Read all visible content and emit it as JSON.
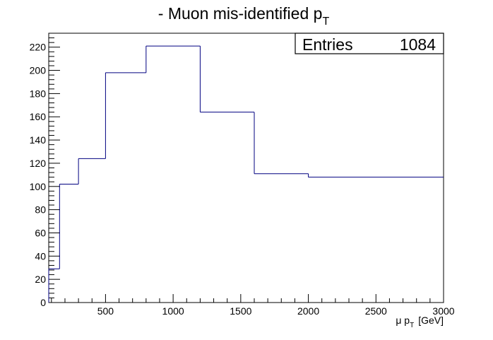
{
  "chart_data": {
    "type": "histogram",
    "title_main": "- Muon mis-identified p",
    "title_sub": "T",
    "xlabel_main": "μ p",
    "xlabel_sub": "T",
    "xlabel_unit": "[GeV]",
    "xlim": [
      80,
      3000
    ],
    "ylim": [
      0,
      232
    ],
    "x_ticks": [
      500,
      1000,
      1500,
      2000,
      2500,
      3000
    ],
    "y_ticks": [
      0,
      20,
      40,
      60,
      80,
      100,
      120,
      140,
      160,
      180,
      200,
      220
    ],
    "bins": [
      {
        "x_low": 80,
        "x_high": 160,
        "value": 29
      },
      {
        "x_low": 160,
        "x_high": 300,
        "value": 102
      },
      {
        "x_low": 300,
        "x_high": 500,
        "value": 124
      },
      {
        "x_low": 500,
        "x_high": 800,
        "value": 198
      },
      {
        "x_low": 800,
        "x_high": 1200,
        "value": 221
      },
      {
        "x_low": 1200,
        "x_high": 1600,
        "value": 164
      },
      {
        "x_low": 1600,
        "x_high": 2000,
        "value": 111
      },
      {
        "x_low": 2000,
        "x_high": 3000,
        "value": 108
      }
    ],
    "stats_label": "Entries",
    "stats_value": "1084",
    "line_color": "#000080",
    "grid": false,
    "legend": "top-right"
  }
}
